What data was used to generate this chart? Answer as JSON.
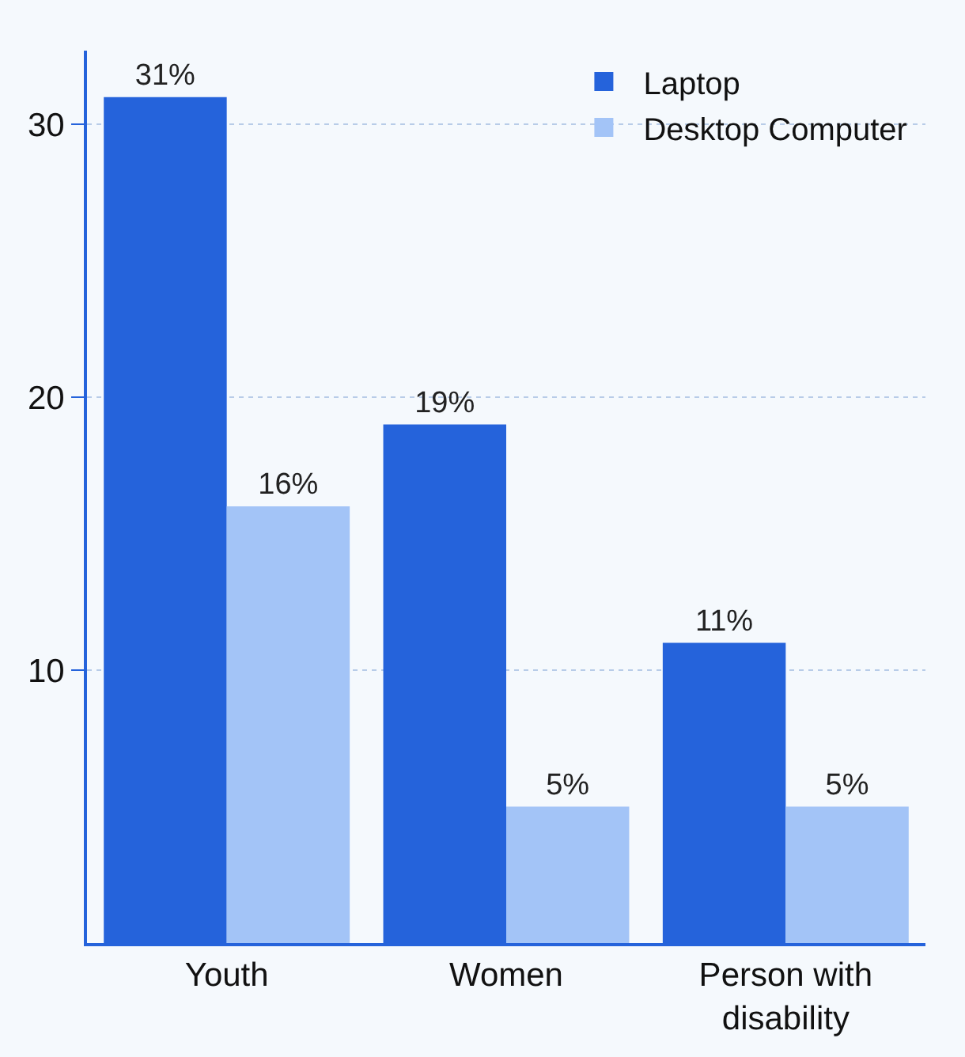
{
  "chart_data": {
    "type": "bar",
    "categories": [
      "Youth",
      "Women",
      "Person with disability"
    ],
    "series": [
      {
        "name": "Laptop",
        "color": "#2563db",
        "values": [
          31,
          19,
          11
        ],
        "value_labels": [
          "31%",
          "19%",
          "11%"
        ]
      },
      {
        "name": "Desktop Computer",
        "color": "#a3c4f7",
        "values": [
          16,
          5,
          5
        ],
        "value_labels": [
          "16%",
          "5%",
          "5%"
        ]
      }
    ],
    "ylim": [
      0,
      32.7
    ],
    "yticks": [
      10,
      20,
      30
    ],
    "grid": "y",
    "legend": "top right"
  }
}
